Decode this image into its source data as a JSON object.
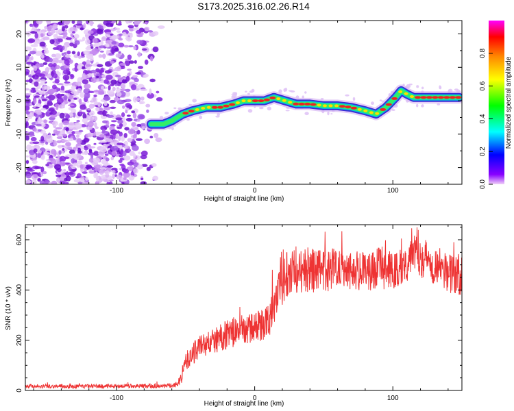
{
  "title": "S173.2025.316.02.26.R14",
  "chart_data": [
    {
      "type": "heatmap",
      "name": "spectrogram",
      "xlabel": "Height of straight line (km)",
      "ylabel": "Frequency (Hz)",
      "xlim": [
        -166,
        150
      ],
      "ylim": [
        -25,
        24
      ],
      "xticks": [
        "-100",
        "0",
        "100"
      ],
      "yticks": [
        "20",
        "10",
        "0",
        "-10",
        "-20"
      ],
      "noise_region": {
        "x_range": [
          -166,
          -66
        ],
        "y_range": [
          -25,
          24
        ]
      },
      "ridge_path": [
        [
          -75,
          -7
        ],
        [
          -66,
          -7
        ],
        [
          -60,
          -6
        ],
        [
          -52,
          -4
        ],
        [
          -45,
          -3
        ],
        [
          -35,
          -2
        ],
        [
          -25,
          -2
        ],
        [
          -15,
          -1
        ],
        [
          -8,
          0
        ],
        [
          0,
          0
        ],
        [
          7,
          0
        ],
        [
          14,
          1
        ],
        [
          22,
          0
        ],
        [
          30,
          -1
        ],
        [
          40,
          -1
        ],
        [
          50,
          -1.5
        ],
        [
          60,
          -1.5
        ],
        [
          70,
          -2
        ],
        [
          80,
          -3
        ],
        [
          88,
          -4
        ],
        [
          95,
          -2
        ],
        [
          102,
          1
        ],
        [
          106,
          3
        ],
        [
          110,
          2
        ],
        [
          115,
          1
        ],
        [
          130,
          1
        ],
        [
          148,
          1
        ]
      ],
      "colorbar": {
        "label": "Normalized spectral amplitude",
        "range": [
          0,
          1
        ],
        "ticks": [
          "0.0",
          "0.2",
          "0.4",
          "0.6",
          "0.8"
        ]
      }
    },
    {
      "type": "line",
      "name": "snr",
      "xlabel": "Height of straight line (km)",
      "ylabel": "SNR (10 * v/v)",
      "xlim": [
        -166,
        150
      ],
      "ylim": [
        0,
        660
      ],
      "xticks": [
        "-100",
        "0",
        "100"
      ],
      "yticks": [
        "0",
        "200",
        "400",
        "600"
      ],
      "series": [
        {
          "name": "SNR",
          "color": "#ee3333",
          "x": [
            -166,
            -150,
            -130,
            -110,
            -90,
            -70,
            -58,
            -54,
            -50,
            -45,
            -40,
            -30,
            -20,
            -10,
            0,
            10,
            15,
            20,
            25,
            30,
            40,
            50,
            60,
            70,
            80,
            90,
            100,
            110,
            115,
            120,
            130,
            140,
            150
          ],
          "y": [
            18,
            17,
            16,
            17,
            18,
            17,
            20,
            35,
            110,
            145,
            175,
            195,
            225,
            240,
            250,
            275,
            360,
            420,
            500,
            470,
            480,
            470,
            500,
            480,
            470,
            490,
            470,
            510,
            580,
            540,
            500,
            470,
            450
          ],
          "band": [
            8,
            8,
            8,
            8,
            8,
            8,
            10,
            20,
            40,
            45,
            50,
            50,
            60,
            60,
            60,
            70,
            80,
            90,
            110,
            110,
            90,
            90,
            80,
            80,
            80,
            80,
            80,
            80,
            90,
            90,
            80,
            80,
            80
          ]
        }
      ]
    }
  ]
}
